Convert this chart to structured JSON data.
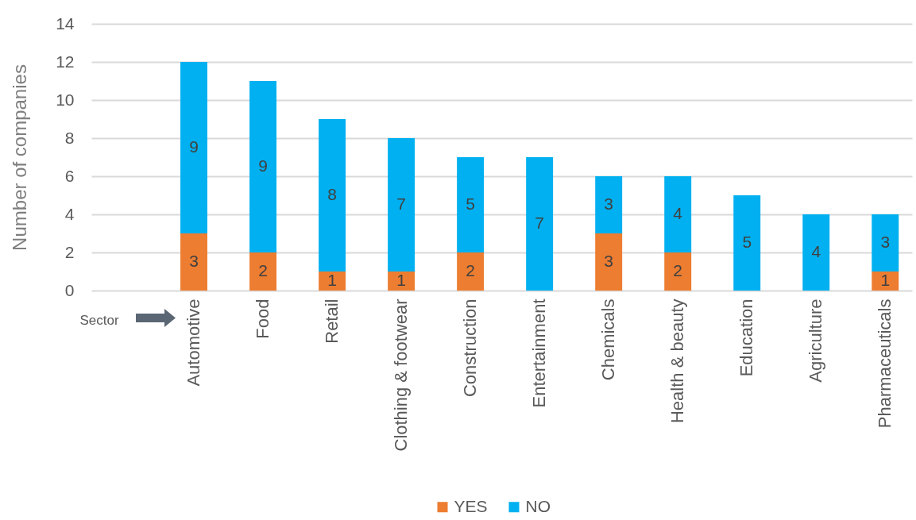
{
  "chart_data": {
    "type": "bar",
    "stacked": true,
    "categories": [
      "Automotive",
      "Food",
      "Retail",
      "Clothing & footwear",
      "Construction",
      "Entertainment",
      "Chemicals",
      "Health & beauty",
      "Education",
      "Agriculture",
      "Pharmaceuticals"
    ],
    "series": [
      {
        "name": "YES",
        "color": "#ed7d31",
        "values": [
          3,
          2,
          1,
          1,
          2,
          null,
          3,
          2,
          null,
          null,
          1
        ]
      },
      {
        "name": "NO",
        "color": "#00b0f0",
        "values": [
          9,
          9,
          8,
          7,
          5,
          7,
          3,
          4,
          5,
          4,
          3
        ]
      }
    ],
    "xlabel": "Sector",
    "ylabel": "Number of companies",
    "ylim": [
      0,
      14
    ],
    "yticks": [
      0,
      2,
      4,
      6,
      8,
      10,
      12,
      14
    ],
    "grid": "y",
    "legend": "bottom",
    "data_labels": true
  }
}
